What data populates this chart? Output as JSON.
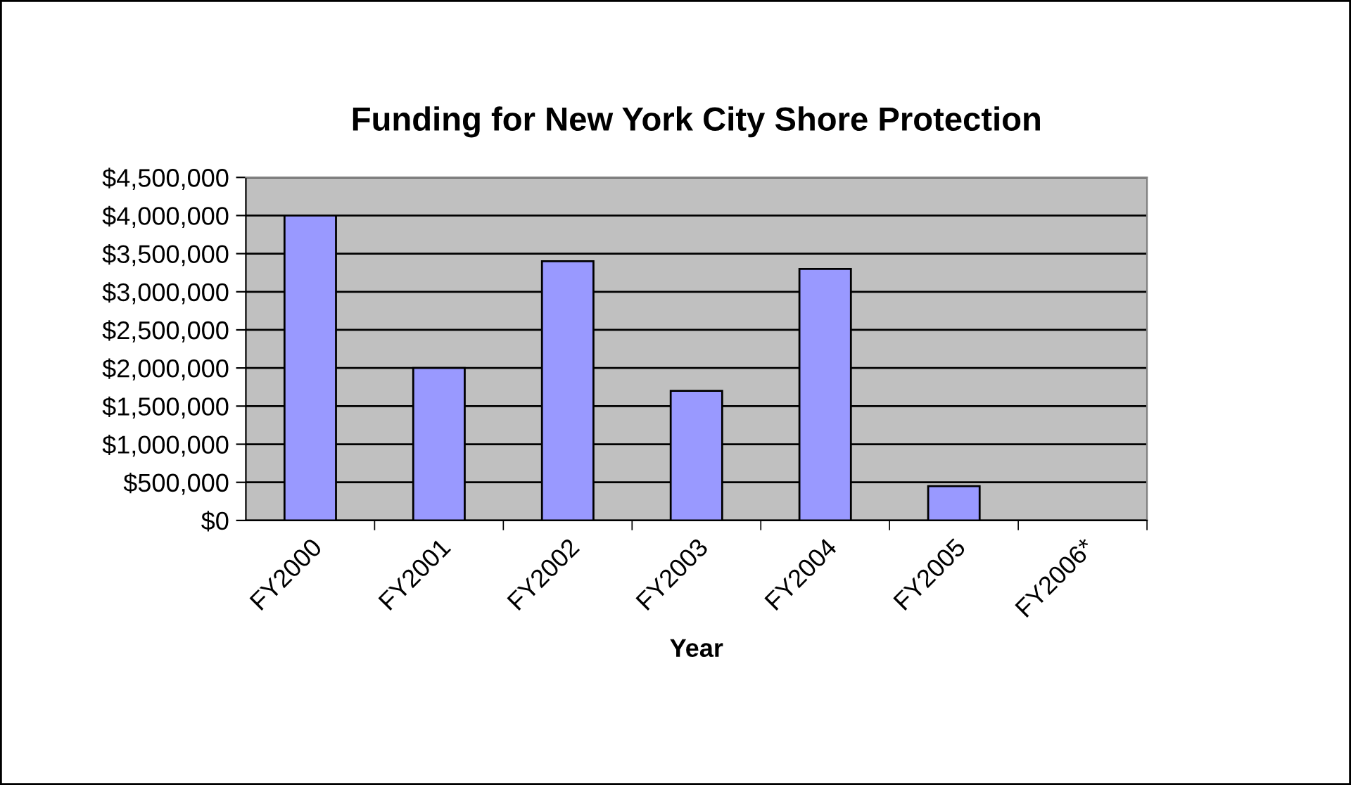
{
  "chart_data": {
    "type": "bar",
    "title": "Funding for New York City Shore Protection",
    "xlabel": "Year",
    "categories": [
      "FY2000",
      "FY2001",
      "FY2002",
      "FY2003",
      "FY2004",
      "FY2005",
      "FY2006*"
    ],
    "values": [
      4000000,
      2000000,
      3400000,
      1700000,
      3300000,
      450000,
      null
    ],
    "color": "#9999ff",
    "ylim": [
      0,
      4500000
    ],
    "yticks": [
      {
        "value": 0,
        "label": "$0"
      },
      {
        "value": 500000,
        "label": "$500,000"
      },
      {
        "value": 1000000,
        "label": "$1,000,000"
      },
      {
        "value": 1500000,
        "label": "$1,500,000"
      },
      {
        "value": 2000000,
        "label": "$2,000,000"
      },
      {
        "value": 2500000,
        "label": "$2,500,000"
      },
      {
        "value": 3000000,
        "label": "$3,000,000"
      },
      {
        "value": 3500000,
        "label": "$3,500,000"
      },
      {
        "value": 4000000,
        "label": "$4,000,000"
      },
      {
        "value": 4500000,
        "label": "$4,500,000"
      }
    ],
    "grid": "y",
    "legend": false
  }
}
